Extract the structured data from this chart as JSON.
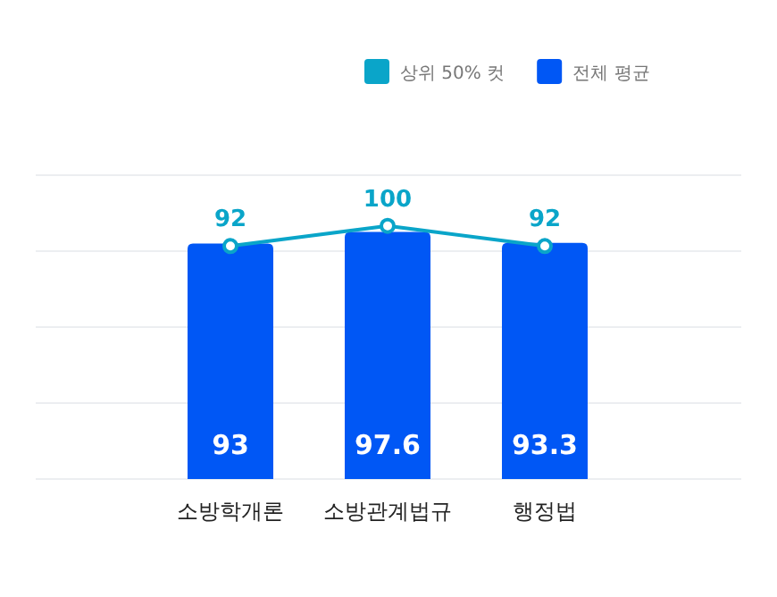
{
  "chart_data": {
    "type": "bar",
    "categories": [
      "소방학개론",
      "소방관계법규",
      "행정법"
    ],
    "series": [
      {
        "name": "상위 50% 컷",
        "type": "line",
        "color": "#0aa5c9",
        "marker": "circle",
        "values": [
          92,
          100,
          92
        ]
      },
      {
        "name": "전체 평균",
        "type": "bar",
        "color": "#0057f5",
        "values": [
          93,
          97.6,
          93.3
        ]
      }
    ],
    "ylim": [
      0,
      120
    ],
    "yticks": [
      {
        "value": 0,
        "label": null
      },
      {
        "value": 30,
        "label": null
      },
      {
        "value": 60,
        "label": null
      },
      {
        "value": 90,
        "label": null
      },
      {
        "value": 120,
        "label": null
      }
    ],
    "grid": "y",
    "legend": "top right",
    "data_labels": true
  }
}
